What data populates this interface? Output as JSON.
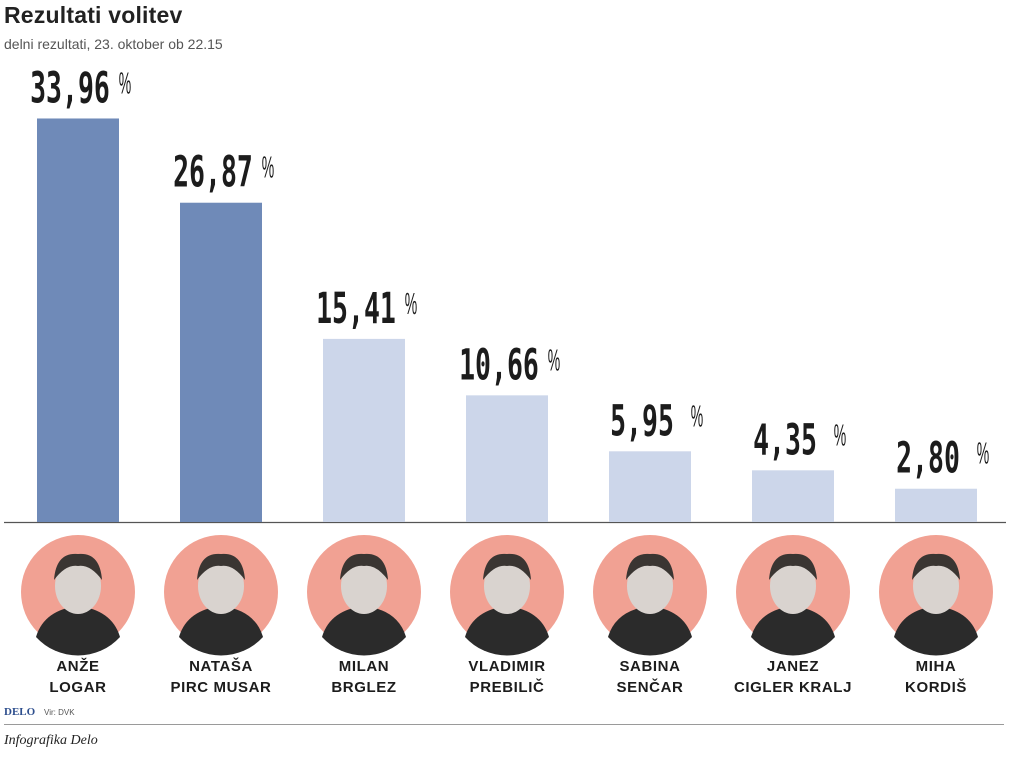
{
  "header": {
    "title": "Rezultati volitev",
    "subtitle": "delni rezultati, 23. oktober ob 22.15"
  },
  "footer": {
    "logo": "DELO",
    "source": "Vir: DVK",
    "credit": "Infografika Delo"
  },
  "colors": {
    "bar_top": "#6f8ab8",
    "bar_other": "#ccd6ea",
    "portrait_bg": "#f1a193",
    "baseline": "#555555"
  },
  "chart_data": {
    "type": "bar",
    "title": "Rezultati volitev",
    "subtitle": "delni rezultati, 23. oktober ob 22.15",
    "categories": [
      "ANŽE LOGAR",
      "NATAŠA PIRC MUSAR",
      "MILAN BRGLEZ",
      "VLADIMIR PREBILIČ",
      "SABINA SENČAR",
      "JANEZ CIGLER KRALJ",
      "MIHA KORDIŠ"
    ],
    "label_lines": [
      [
        "ANŽE",
        "LOGAR"
      ],
      [
        "NATAŠA",
        "PIRC MUSAR"
      ],
      [
        "MILAN",
        "BRGLEZ"
      ],
      [
        "VLADIMIR",
        "PREBILIČ"
      ],
      [
        "SABINA",
        "SENČAR"
      ],
      [
        "JANEZ",
        "CIGLER KRALJ"
      ],
      [
        "MIHA",
        "KORDIŠ"
      ]
    ],
    "values": [
      33.96,
      26.87,
      15.41,
      10.66,
      5.95,
      4.35,
      2.8
    ],
    "value_labels": [
      "33,96",
      "26,87",
      "15,41",
      "10,66",
      "5,95",
      "4,35",
      "2,80"
    ],
    "unit": "%",
    "highlighted": [
      true,
      true,
      false,
      false,
      false,
      false,
      false
    ],
    "ylim": [
      0,
      34
    ],
    "grid": false,
    "legend": "none",
    "xlabel": "",
    "ylabel": ""
  }
}
